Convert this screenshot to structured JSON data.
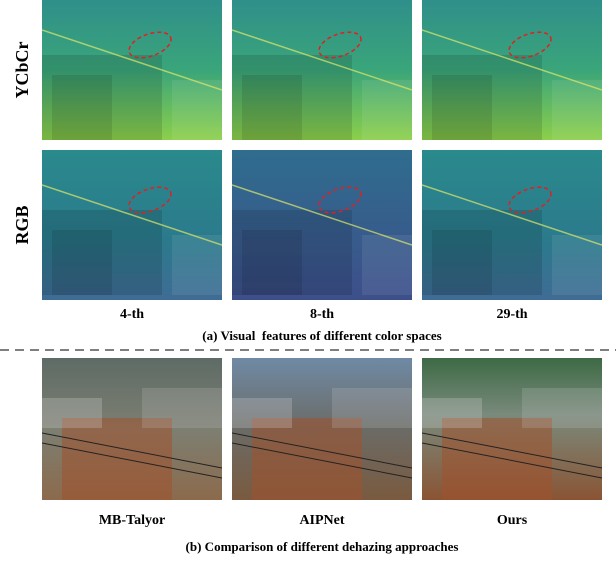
{
  "rows": [
    "YCbCr",
    "RGB"
  ],
  "columns": [
    "4-th",
    "8-th",
    "29-th"
  ],
  "caption_a": "(a) Visual  features of different color spaces",
  "methods": [
    "MB-Talyor",
    "AIPNet",
    "Ours"
  ],
  "caption_b": "(b) Comparison of different dehazing approaches"
}
